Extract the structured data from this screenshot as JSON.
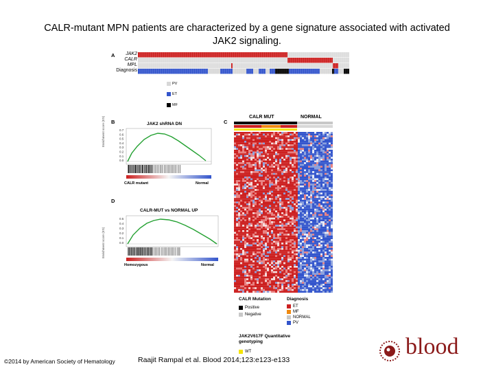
{
  "title_line1": "CALR-mutant MPN patients are characterized by a gene signature associated with activated",
  "title_line2": "JAK2 signaling.",
  "panel_a": {
    "letter": "A",
    "rows": [
      "JAK2",
      "CALR",
      "MPL",
      "Diagnosis"
    ],
    "legend": [
      "PV",
      "ET",
      "MF"
    ]
  },
  "panel_b": {
    "letter": "B",
    "title": "JAK2 shRNA DN",
    "ylabel": "Enrichment score (ES)",
    "yticks": [
      "0.7",
      "0.6",
      "0.5",
      "0.4",
      "0.3",
      "0.2",
      "0.1",
      "0.0"
    ],
    "left_label": "CALR mutant",
    "right_label": "Normal"
  },
  "panel_c": {
    "letter": "C",
    "col_left": "CALR MUT",
    "col_right": "NORMAL"
  },
  "panel_d": {
    "letter": "D",
    "title": "CALR-MUT vs NORMAL UP",
    "ylabel": "Enrichment score (ES)",
    "left_label": "Homozygous",
    "right_label": "Normal"
  },
  "legend_c": {
    "mutation_title": "CALR Mutation",
    "mutation_items": [
      "Positive",
      "Negative"
    ],
    "diagnosis_title": "Diagnosis",
    "diagnosis_items": [
      "ET",
      "MF",
      "NORMAL",
      "PV"
    ],
    "quant_title_1": "JAK2V617F Quantitative",
    "quant_title_2": "genotyping",
    "quant_items": [
      "WT"
    ]
  },
  "colors": {
    "red": "#cc2020",
    "blue": "#3355cc",
    "grey": "#c8c8c8",
    "black": "#000000",
    "orange": "#f08a10",
    "yellow": "#f5e400",
    "green": "#22a030",
    "brand": "#8b1a1a"
  },
  "footer": {
    "copyright": "©2014 by American Society of Hematology",
    "citation": "Raajit Rampal et al. Blood 2014;123:e123-e133",
    "logo": "blood"
  }
}
